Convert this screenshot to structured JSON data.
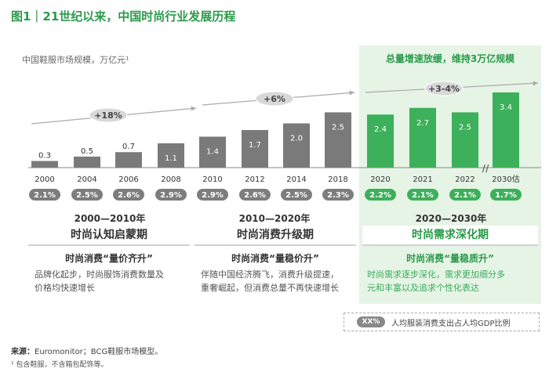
{
  "title": "图1｜21世纪以来，中国时尚行业发展历程",
  "y_unit": "中国鞋服市场规模，万亿元¹",
  "green_panel_title": "总量增速放缓，维持3万亿规模",
  "chart_data": {
    "type": "bar",
    "categories": [
      "2000",
      "2004",
      "2006",
      "2008",
      "2010",
      "2012",
      "2014",
      "2018",
      "2020",
      "2021",
      "2022",
      "2030估"
    ],
    "values": [
      0.3,
      0.5,
      0.7,
      1.1,
      1.4,
      1.7,
      2.0,
      2.5,
      2.4,
      2.7,
      2.5,
      3.4
    ],
    "value_labels": [
      "0.3",
      "0.5",
      "0.7",
      "1.1",
      "1.4",
      "1.7",
      "2.0",
      "2.5",
      "2.4",
      "2.7",
      "2.5",
      "3.4"
    ],
    "gdp_share_labels": [
      "2.1%",
      "2.5%",
      "2.6%",
      "2.9%",
      "2.9%",
      "2.6%",
      "2.5%",
      "2.3%",
      "2.2%",
      "2.1%",
      "2.1%",
      "1.7%"
    ],
    "growth_labels": [
      "+18%",
      "+6%",
      "+3-4%"
    ],
    "ylim": [
      0,
      3.4
    ],
    "colors": {
      "grey": "#7a7a7a",
      "green": "#3cb05a"
    },
    "axis_break_symbol": "//"
  },
  "periods": [
    {
      "head": "2000—2010年",
      "title": "时尚认知启蒙期",
      "subtitle": "时尚消费“量价齐升”",
      "desc": [
        "品牌化起步，时尚服饰消费数量及",
        "价格均快速增长"
      ]
    },
    {
      "head": "2010—2020年",
      "title": "时尚消费升级期",
      "subtitle": "时尚消费“量稳价升”",
      "desc": [
        "伴随中国经济腾飞，消费升级提速，",
        "重奢崛起，但消费总量不再快速增长"
      ]
    },
    {
      "head": "2020—2030年",
      "title": "时尚需求深化期",
      "subtitle": "时尚消费“量稳质升”",
      "desc": [
        "时尚需求逐步深化，需求更加细分多",
        "元和丰富以及追求个性化表达"
      ]
    }
  ],
  "legend": {
    "pill": "XX%",
    "text": "人均服装消费支出占人均GDP比例"
  },
  "source": {
    "label": "来源：",
    "text": "Euromonitor；BCG鞋服市场模型。"
  },
  "footnote": "¹ 包含鞋服，不含箱包配饰等。"
}
